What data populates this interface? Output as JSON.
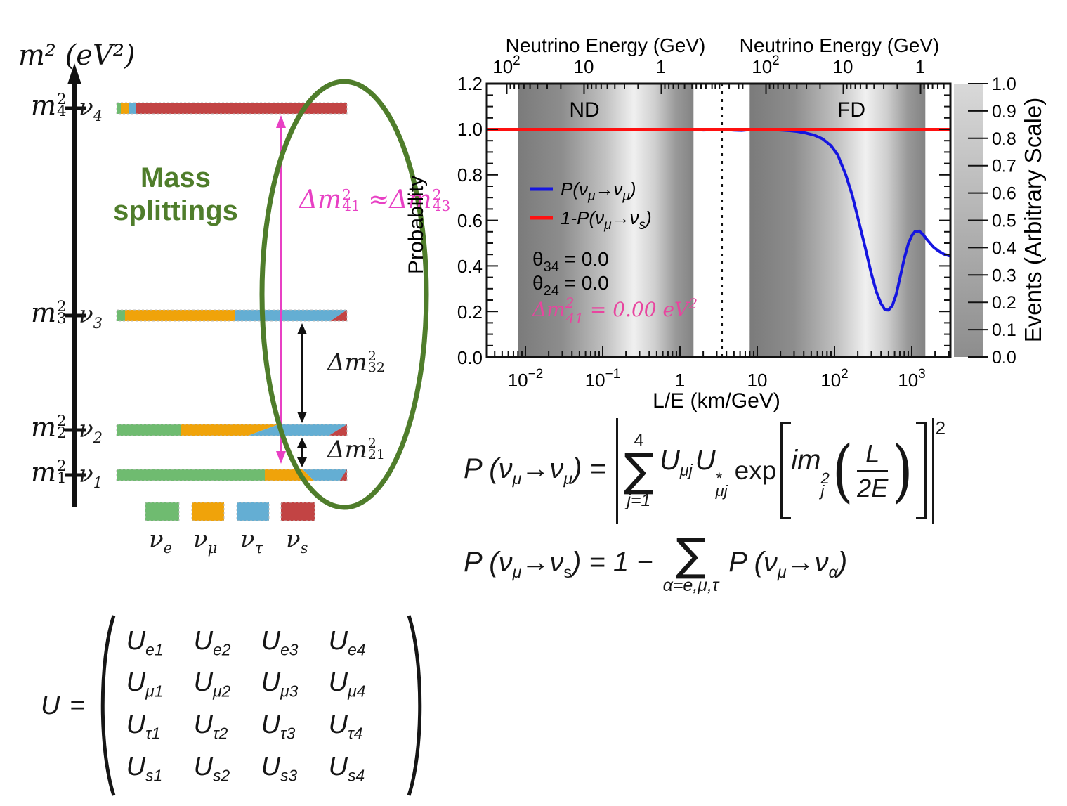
{
  "colors": {
    "nu_e": "#6fbb70",
    "nu_mu": "#f0a30a",
    "nu_tau": "#64aed3",
    "nu_s": "#c24444",
    "annotation_green": "#4f7d2b",
    "pink": "#e840c4",
    "magenta": "#e8459f",
    "curve_blue": "#1515e0",
    "line_red": "#ff1010"
  },
  "mass_diagram": {
    "axis_title": "m² (eV²)",
    "title_line1": "Mass",
    "title_line2": "splittings",
    "states": [
      {
        "m_base": "m",
        "m_sup": "2",
        "m_sub": "4",
        "nu_base": "ν",
        "nu_sub": "4",
        "composition": {
          "nu_e": 0.015,
          "nu_mu": 0.035,
          "nu_tau": 0.035,
          "nu_s": 0.915
        }
      },
      {
        "m_base": "m",
        "m_sup": "2",
        "m_sub": "3",
        "nu_base": "ν",
        "nu_sub": "3",
        "composition": {
          "nu_e": 0.04,
          "nu_mu": 0.48,
          "nu_tau": 0.44,
          "nu_s": 0.04
        }
      },
      {
        "m_base": "m",
        "m_sup": "2",
        "m_sub": "2",
        "nu_base": "ν",
        "nu_sub": "2",
        "composition": {
          "nu_e": 0.28,
          "nu_mu": 0.33,
          "nu_tau": 0.33,
          "nu_s": 0.06
        }
      },
      {
        "m_base": "m",
        "m_sup": "2",
        "m_sub": "1",
        "nu_base": "ν",
        "nu_sub": "1",
        "composition": {
          "nu_e": 0.645,
          "nu_mu": 0.165,
          "nu_tau": 0.17,
          "nu_s": 0.02
        }
      }
    ],
    "splittings": {
      "dm41_b": "Δm",
      "dm41_sup": "2",
      "dm41_sub": "41",
      "approx": "≈ ",
      "dm43_b": "Δm",
      "dm43_sup": "2",
      "dm43_sub": "43",
      "dm32_b": "Δm",
      "dm32_sup": "2",
      "dm32_sub": "32",
      "dm21_b": "Δm",
      "dm21_sup": "2",
      "dm21_sub": "21"
    },
    "legend": [
      {
        "base": "ν",
        "sub": "e"
      },
      {
        "base": "ν",
        "sub": "μ"
      },
      {
        "base": "ν",
        "sub": "τ"
      },
      {
        "base": "ν",
        "sub": "s"
      }
    ]
  },
  "plot": {
    "top_axis_title_left": "Neutrino Energy (GeV)",
    "top_axis_title_right": "Neutrino Energy (GeV)",
    "top_ticks": [
      {
        "b": "10",
        "s": "2"
      },
      {
        "b": "10",
        "s": ""
      },
      {
        "b": "1",
        "s": ""
      },
      {
        "b": "10",
        "s": "2"
      },
      {
        "b": "10",
        "s": ""
      },
      {
        "b": "1",
        "s": ""
      }
    ],
    "x_ticks": [
      {
        "b": "10",
        "s": "−2"
      },
      {
        "b": "10",
        "s": "−1"
      },
      {
        "b": "1",
        "s": ""
      },
      {
        "b": "10",
        "s": ""
      },
      {
        "b": "10",
        "s": "2"
      },
      {
        "b": "10",
        "s": "3"
      }
    ],
    "y_ticks": [
      "1.2",
      "1.0",
      "0.8",
      "0.6",
      "0.4",
      "0.2",
      "0.0"
    ],
    "ylabel": "Probability",
    "xlabel": "L/E (km/GeV)",
    "nd_label": "ND",
    "fd_label": "FD",
    "legend": {
      "blue": {
        "p1": "P(ν",
        "s1": "μ",
        "p2": "→ν",
        "s2": "μ",
        "p3": ")"
      },
      "red": {
        "p1": "1-P(ν",
        "s1": "μ",
        "p2": "→ν",
        "s2": "s",
        "p3": ")"
      }
    },
    "annotations": {
      "theta34": {
        "b": "θ",
        "sub": "34",
        "eq": " = 0.0"
      },
      "theta24": {
        "b": "θ",
        "sub": "24",
        "eq": " = 0.0"
      },
      "dm41": {
        "b": "Δm",
        "sup": "2",
        "sub": "41",
        "eq": " = 0.00 eV",
        "eq_sup": "2"
      }
    },
    "colorbar": {
      "ticks": [
        "1.0",
        "0.9",
        "0.8",
        "0.7",
        "0.6",
        "0.5",
        "0.4",
        "0.3",
        "0.2",
        "0.1",
        "0.0"
      ],
      "label": "Events (Arbitrary Scale)"
    }
  },
  "equations": {
    "eq1": {
      "p1": "P (ν",
      "s1": "μ",
      "p2": "→ν",
      "s2": "μ",
      "p3": ") =",
      "sum_top": "4",
      "sum_sym": "∑",
      "sum_bot": "j=1",
      "u1": "U",
      "u1_sub": "μj",
      "u2": "U",
      "u2_sup": "*",
      "u2_sub": "μj",
      "exp": "exp",
      "im": "im",
      "im_sup": "2",
      "im_sub": "j",
      "paren_l": "(",
      "paren_r": ")",
      "frac_num": "L",
      "frac_den": "2E",
      "outer_sup": "2"
    },
    "eq2": {
      "p1": "P (ν",
      "s1": "μ",
      "p2": "→ν",
      "s2": "s",
      "p3": ") = 1 −",
      "sum_sym": "∑",
      "sum_bot": "α=e,μ,τ",
      "p4": "P (ν",
      "s2b": "μ",
      "p5": "→ν",
      "s3": "α",
      "p6": ")"
    }
  },
  "matrix": {
    "lhs": "U",
    "eq": "=",
    "rows": [
      [
        {
          "b": "U",
          "s": "e1"
        },
        {
          "b": "U",
          "s": "e2"
        },
        {
          "b": "U",
          "s": "e3"
        },
        {
          "b": "U",
          "s": "e4"
        }
      ],
      [
        {
          "b": "U",
          "s": "μ1"
        },
        {
          "b": "U",
          "s": "μ2"
        },
        {
          "b": "U",
          "s": "μ3"
        },
        {
          "b": "U",
          "s": "μ4"
        }
      ],
      [
        {
          "b": "U",
          "s": "τ1"
        },
        {
          "b": "U",
          "s": "τ2"
        },
        {
          "b": "U",
          "s": "τ3"
        },
        {
          "b": "U",
          "s": "τ4"
        }
      ],
      [
        {
          "b": "U",
          "s": "s1"
        },
        {
          "b": "U",
          "s": "s2"
        },
        {
          "b": "U",
          "s": "s3"
        },
        {
          "b": "U",
          "s": "s4"
        }
      ]
    ]
  },
  "chart_data": {
    "type": "line",
    "title": "",
    "xlabel": "L/E (km/GeV)",
    "ylabel": "Probability",
    "top_axis_label": "Neutrino Energy (GeV)",
    "xscale": "log",
    "xlim": [
      0.00316,
      3162
    ],
    "ylim": [
      0.0,
      1.2
    ],
    "legend_position": "upper-left-inside",
    "grid": false,
    "series": [
      {
        "name": "P(νμ→νμ)",
        "color": "#1515e0",
        "x": [
          0.00316,
          1.2,
          1.6,
          2.0,
          2.6,
          3.2,
          4.0,
          5.0,
          6.3,
          8.0,
          10,
          13,
          16,
          20,
          26,
          33,
          42,
          55,
          70,
          90,
          110,
          140,
          170,
          210,
          250,
          300,
          350,
          400,
          450,
          500,
          560,
          630,
          700,
          800,
          900,
          1000,
          1100,
          1250,
          1400,
          1600,
          1900,
          2200,
          2600,
          3000,
          3160
        ],
        "y": [
          1.0,
          1.0,
          0.999,
          0.9965,
          0.9975,
          0.999,
          0.9985,
          0.996,
          0.995,
          0.998,
          0.999,
          0.9985,
          0.998,
          0.9965,
          0.994,
          0.99,
          0.984,
          0.974,
          0.958,
          0.928,
          0.888,
          0.8,
          0.71,
          0.585,
          0.48,
          0.365,
          0.285,
          0.235,
          0.207,
          0.206,
          0.225,
          0.275,
          0.345,
          0.432,
          0.497,
          0.533,
          0.551,
          0.553,
          0.538,
          0.512,
          0.483,
          0.466,
          0.452,
          0.445,
          0.443
        ]
      },
      {
        "name": "1-P(νμ→νs)",
        "color": "#ff1010",
        "x": [
          0.00316,
          3162
        ],
        "y": [
          1.0,
          1.0
        ]
      }
    ],
    "bands": [
      {
        "label": "ND",
        "range": [
          0.008,
          1.5
        ]
      },
      {
        "label": "FD",
        "range": [
          8.0,
          1500
        ]
      }
    ],
    "energy_tick_baselines_km": [
      0.574,
      1300
    ],
    "dashed_line_x": 3.5,
    "colorbar": {
      "label": "Events (Arbitrary Scale)",
      "range": [
        0.0,
        1.0
      ]
    }
  }
}
